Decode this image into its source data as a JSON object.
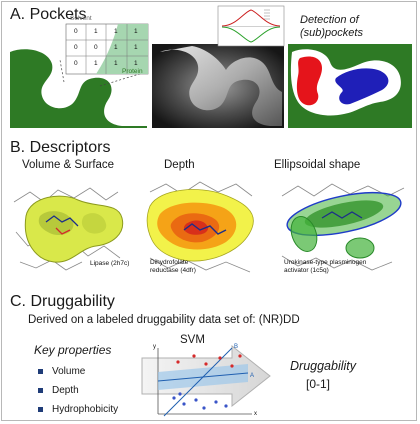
{
  "section_a": {
    "title": "A. Pockets",
    "grid_header": "Solvent",
    "grid_rows": [
      [
        "0",
        "1",
        "1",
        "1"
      ],
      [
        "0",
        "0",
        "1",
        "1"
      ],
      [
        "0",
        "1",
        "1",
        "1"
      ]
    ],
    "protein_label": "Protein",
    "detection_title_line1": "Detection of",
    "detection_title_line2": "(sub)pockets"
  },
  "section_b": {
    "title": "B. Descriptors",
    "label_volume": "Volume & Surface",
    "label_depth": "Depth",
    "label_shape": "Ellipsoidal shape",
    "caption_lipase": "Lipase (2h7c)",
    "caption_dhfr_line1": "Dihydrofolate",
    "caption_dhfr_line2": "reductase (4dfr)",
    "caption_upa_line1": "Urokinase-type plasminogen",
    "caption_upa_line2": "activator (1c5q)"
  },
  "section_c": {
    "title": "C. Druggability",
    "subtitle": "Derived on a labeled druggability data set of: (NR)DD",
    "key_props_title": "Key properties",
    "properties": [
      "Volume",
      "Depth",
      "Hydrophobicity"
    ],
    "svm_label": "SVM",
    "axis_y": "y",
    "axis_x": "x",
    "line_a": "A",
    "line_b": "B",
    "druggability_label": "Druggability",
    "druggability_range": "[0-1]"
  },
  "colors": {
    "green": "#2e7a25",
    "pocket_red": "#e5141b",
    "pocket_blue": "#1f1fb8",
    "accent_blue": "#1f3c78",
    "surface_yellow": "#d9e84a",
    "depth_orange": "#ef7a12"
  }
}
